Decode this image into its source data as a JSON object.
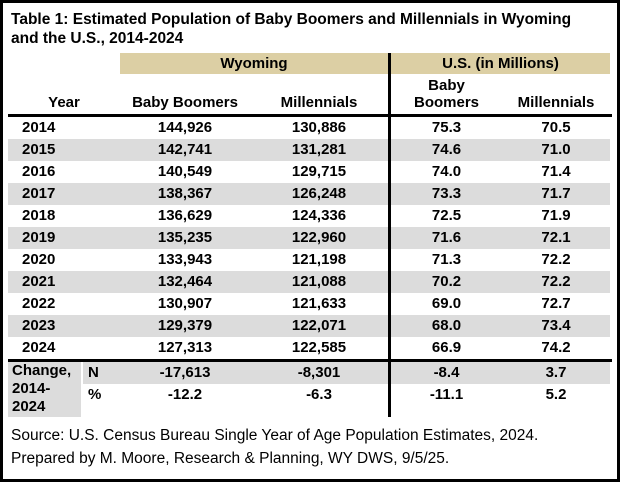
{
  "title": "Table 1: Estimated Population of Baby Boomers and Millennials in Wyoming and the U.S., 2014-2024",
  "colors": {
    "group_band": "#DCCFA4",
    "row_stripe": "#DCDCDC",
    "border": "#000000"
  },
  "table": {
    "group_headers": {
      "wyoming": "Wyoming",
      "us": "U.S. (in Millions)"
    },
    "columns": {
      "year": "Year",
      "wy_boomers": "Baby Boomers",
      "wy_millennials": "Millennials",
      "us_boomers": "Baby Boomers",
      "us_millennials": "Millennials"
    },
    "rows": [
      {
        "year": "2014",
        "wy_boomers": "144,926",
        "wy_millennials": "130,886",
        "us_boomers": "75.3",
        "us_millennials": "70.5"
      },
      {
        "year": "2015",
        "wy_boomers": "142,741",
        "wy_millennials": "131,281",
        "us_boomers": "74.6",
        "us_millennials": "71.0"
      },
      {
        "year": "2016",
        "wy_boomers": "140,549",
        "wy_millennials": "129,715",
        "us_boomers": "74.0",
        "us_millennials": "71.4"
      },
      {
        "year": "2017",
        "wy_boomers": "138,367",
        "wy_millennials": "126,248",
        "us_boomers": "73.3",
        "us_millennials": "71.7"
      },
      {
        "year": "2018",
        "wy_boomers": "136,629",
        "wy_millennials": "124,336",
        "us_boomers": "72.5",
        "us_millennials": "71.9"
      },
      {
        "year": "2019",
        "wy_boomers": "135,235",
        "wy_millennials": "122,960",
        "us_boomers": "71.6",
        "us_millennials": "72.1"
      },
      {
        "year": "2020",
        "wy_boomers": "133,943",
        "wy_millennials": "121,198",
        "us_boomers": "71.3",
        "us_millennials": "72.2"
      },
      {
        "year": "2021",
        "wy_boomers": "132,464",
        "wy_millennials": "121,088",
        "us_boomers": "70.2",
        "us_millennials": "72.2"
      },
      {
        "year": "2022",
        "wy_boomers": "130,907",
        "wy_millennials": "121,633",
        "us_boomers": "69.0",
        "us_millennials": "72.7"
      },
      {
        "year": "2023",
        "wy_boomers": "129,379",
        "wy_millennials": "122,071",
        "us_boomers": "68.0",
        "us_millennials": "73.4"
      },
      {
        "year": "2024",
        "wy_boomers": "127,313",
        "wy_millennials": "122,585",
        "us_boomers": "66.9",
        "us_millennials": "74.2"
      }
    ],
    "change": {
      "label": "Change, 2014-2024",
      "n": {
        "label": "N",
        "wy_boomers": "-17,613",
        "wy_millennials": "-8,301",
        "us_boomers": "-8.4",
        "us_millennials": "3.7"
      },
      "pct": {
        "label": "%",
        "wy_boomers": "-12.2",
        "wy_millennials": "-6.3",
        "us_boomers": "-11.1",
        "us_millennials": "5.2"
      }
    }
  },
  "source": {
    "line1": "Source: U.S. Census Bureau Single Year of Age Population Estimates, 2024.",
    "line2": "Prepared by M. Moore, Research & Planning, WY DWS, 9/5/25."
  }
}
